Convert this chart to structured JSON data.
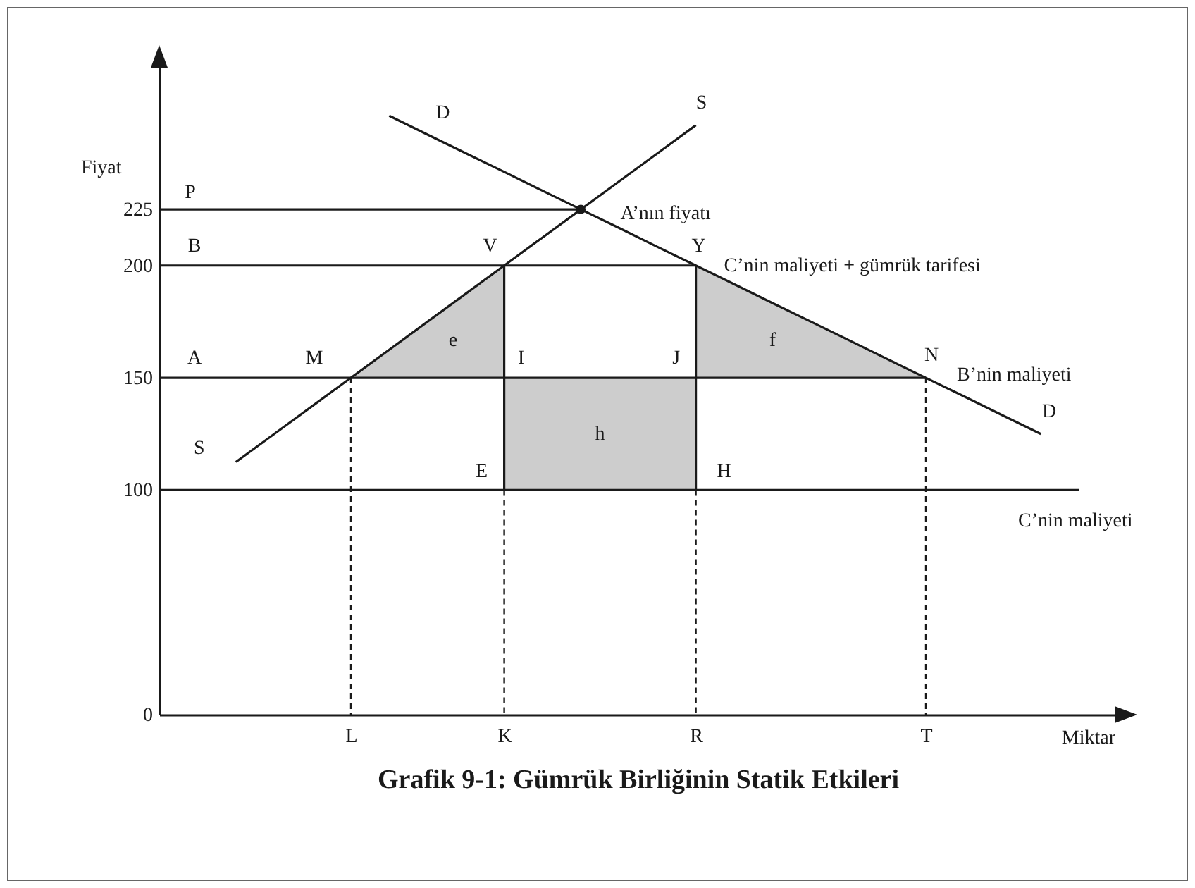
{
  "chart_data": {
    "type": "line",
    "title": "Grafik 9-1: Gümrük Birliğinin Statik Etkileri",
    "xlabel": "Miktar",
    "ylabel": "Fiyat",
    "categories": [
      null,
      null,
      null,
      null,
      null,
      "L",
      null,
      null,
      null,
      "K",
      null,
      null,
      null,
      null,
      "R",
      null,
      null,
      null,
      null,
      null,
      "T",
      null,
      null,
      null,
      null,
      null
    ],
    "ylim": [
      0,
      290
    ],
    "yticks": [
      0,
      100,
      150,
      200,
      225
    ],
    "series": [
      {
        "name": "S",
        "color": "#1a1a1a",
        "values": [
          null,
          null,
          112.5,
          125,
          137.5,
          150,
          162.5,
          175,
          187.5,
          200,
          212.5,
          225,
          237.5,
          250,
          262.5,
          null,
          null,
          null,
          null,
          null,
          null,
          null,
          null,
          null,
          null,
          null
        ],
        "lower": [
          null,
          null,
          null,
          null,
          null,
          150,
          150,
          150,
          150,
          150,
          null,
          null,
          null,
          null,
          null,
          null,
          null,
          null,
          null,
          null,
          null,
          null,
          null,
          null,
          null,
          null
        ],
        "upper": [
          null,
          null,
          null,
          null,
          null,
          150,
          162.5,
          175,
          187.5,
          200,
          null,
          null,
          null,
          null,
          null,
          null,
          null,
          null,
          null,
          null,
          null,
          null,
          null,
          null,
          null,
          null
        ]
      },
      {
        "name": "D",
        "color": "#1a1a1a",
        "values": [
          null,
          null,
          null,
          null,
          null,
          null,
          266.7,
          258.3,
          250,
          241.7,
          233.3,
          225,
          216.7,
          208.3,
          200,
          191.7,
          183.3,
          175,
          166.7,
          158.3,
          150,
          141.7,
          133.3,
          125,
          null,
          null
        ],
        "lower": [
          null,
          null,
          null,
          null,
          null,
          null,
          null,
          null,
          null,
          null,
          null,
          null,
          null,
          null,
          150,
          150,
          150,
          150,
          150,
          150,
          150,
          null,
          null,
          null,
          null,
          null
        ],
        "upper": [
          null,
          null,
          null,
          null,
          null,
          null,
          null,
          null,
          null,
          null,
          null,
          null,
          null,
          null,
          200,
          191.7,
          183.3,
          175,
          166.7,
          158.3,
          150,
          null,
          null,
          null,
          null,
          null
        ]
      },
      {
        "color": "#1a1a1a",
        "values": [
          225,
          225,
          225,
          225,
          225,
          225,
          225,
          225,
          225,
          225,
          225,
          225,
          null,
          null,
          null,
          null,
          null,
          null,
          null,
          null,
          null,
          null,
          null,
          null,
          null,
          null
        ]
      },
      {
        "color": "#1a1a1a",
        "values": [
          200,
          200,
          200,
          200,
          200,
          200,
          200,
          200,
          200,
          200,
          200,
          200,
          200,
          200,
          200,
          null,
          null,
          null,
          null,
          null,
          null,
          null,
          null,
          null,
          null,
          null
        ]
      },
      {
        "color": "#1a1a1a",
        "values": [
          150,
          150,
          150,
          150,
          150,
          150,
          150,
          150,
          150,
          150,
          150,
          150,
          150,
          150,
          150,
          150,
          150,
          150,
          150,
          150,
          150,
          null,
          null,
          null,
          null,
          null
        ],
        "lower": [
          null,
          null,
          null,
          null,
          null,
          null,
          null,
          null,
          null,
          100,
          100,
          100,
          100,
          100,
          100,
          null,
          null,
          null,
          null,
          null,
          null,
          null,
          null,
          null,
          null,
          null
        ],
        "upper": [
          null,
          null,
          null,
          null,
          null,
          null,
          null,
          null,
          null,
          150,
          150,
          150,
          150,
          150,
          150,
          null,
          null,
          null,
          null,
          null,
          null,
          null,
          null,
          null,
          null,
          null
        ]
      },
      {
        "color": "#1a1a1a",
        "values": [
          100,
          100,
          100,
          100,
          100,
          100,
          100,
          100,
          100,
          100,
          100,
          100,
          100,
          100,
          100,
          100,
          100,
          100,
          100,
          100,
          100,
          100,
          100,
          100,
          100,
          null
        ]
      },
      {
        "color": "#1a1a1a",
        "x": [
          "K",
          "K"
        ],
        "values": [
          200,
          100
        ]
      },
      {
        "color": "#1a1a1a",
        "x": [
          "R",
          "R"
        ],
        "values": [
          200,
          100
        ]
      },
      {
        "color": "#1a1a1a",
        "line_style": "dashed",
        "x": [
          "L",
          "L"
        ],
        "values": [
          150,
          0
        ]
      },
      {
        "color": "#1a1a1a",
        "line_style": "dashed",
        "x": [
          "K",
          "K"
        ],
        "values": [
          100,
          0
        ]
      },
      {
        "color": "#1a1a1a",
        "line_style": "dashed",
        "x": [
          "R",
          "R"
        ],
        "values": [
          100,
          0
        ]
      },
      {
        "color": "#1a1a1a",
        "line_style": "dashed",
        "x": [
          "T",
          "T"
        ],
        "values": [
          150,
          0
        ]
      },
      {
        "type": "scatter",
        "marker": "circle",
        "color": "#1a1a1a",
        "values": [
          null,
          null,
          null,
          null,
          null,
          null,
          null,
          null,
          null,
          null,
          null,
          225,
          null,
          null,
          null,
          null,
          null,
          null,
          null,
          null,
          null,
          null,
          null,
          null,
          null,
          null
        ]
      }
    ],
    "annotations": [
      {
        "text": "P",
        "y": 225
      },
      {
        "text": "B",
        "y": 200
      },
      {
        "text": "A",
        "y": 150
      },
      {
        "text": "M",
        "x": "L",
        "y": 150
      },
      {
        "text": "V",
        "x": "K",
        "y": 200
      },
      {
        "text": "I",
        "x": "K",
        "y": 150
      },
      {
        "text": "J",
        "x": "R",
        "y": 150
      },
      {
        "text": "Y",
        "x": "R",
        "y": 200
      },
      {
        "text": "N",
        "x": "T",
        "y": 150
      },
      {
        "text": "E",
        "x": "K",
        "y": 100
      },
      {
        "text": "H",
        "x": "R",
        "y": 100
      },
      "A’nın fiyatı",
      {
        "text": "C’nin maliyeti + gümrük tarifesi",
        "x": "R",
        "y": 200
      },
      {
        "text": "B’nin maliyeti",
        "x": "T",
        "y": 150
      },
      {
        "text": "C’nin maliyeti",
        "y": 100
      },
      "e",
      "f",
      "h"
    ]
  }
}
